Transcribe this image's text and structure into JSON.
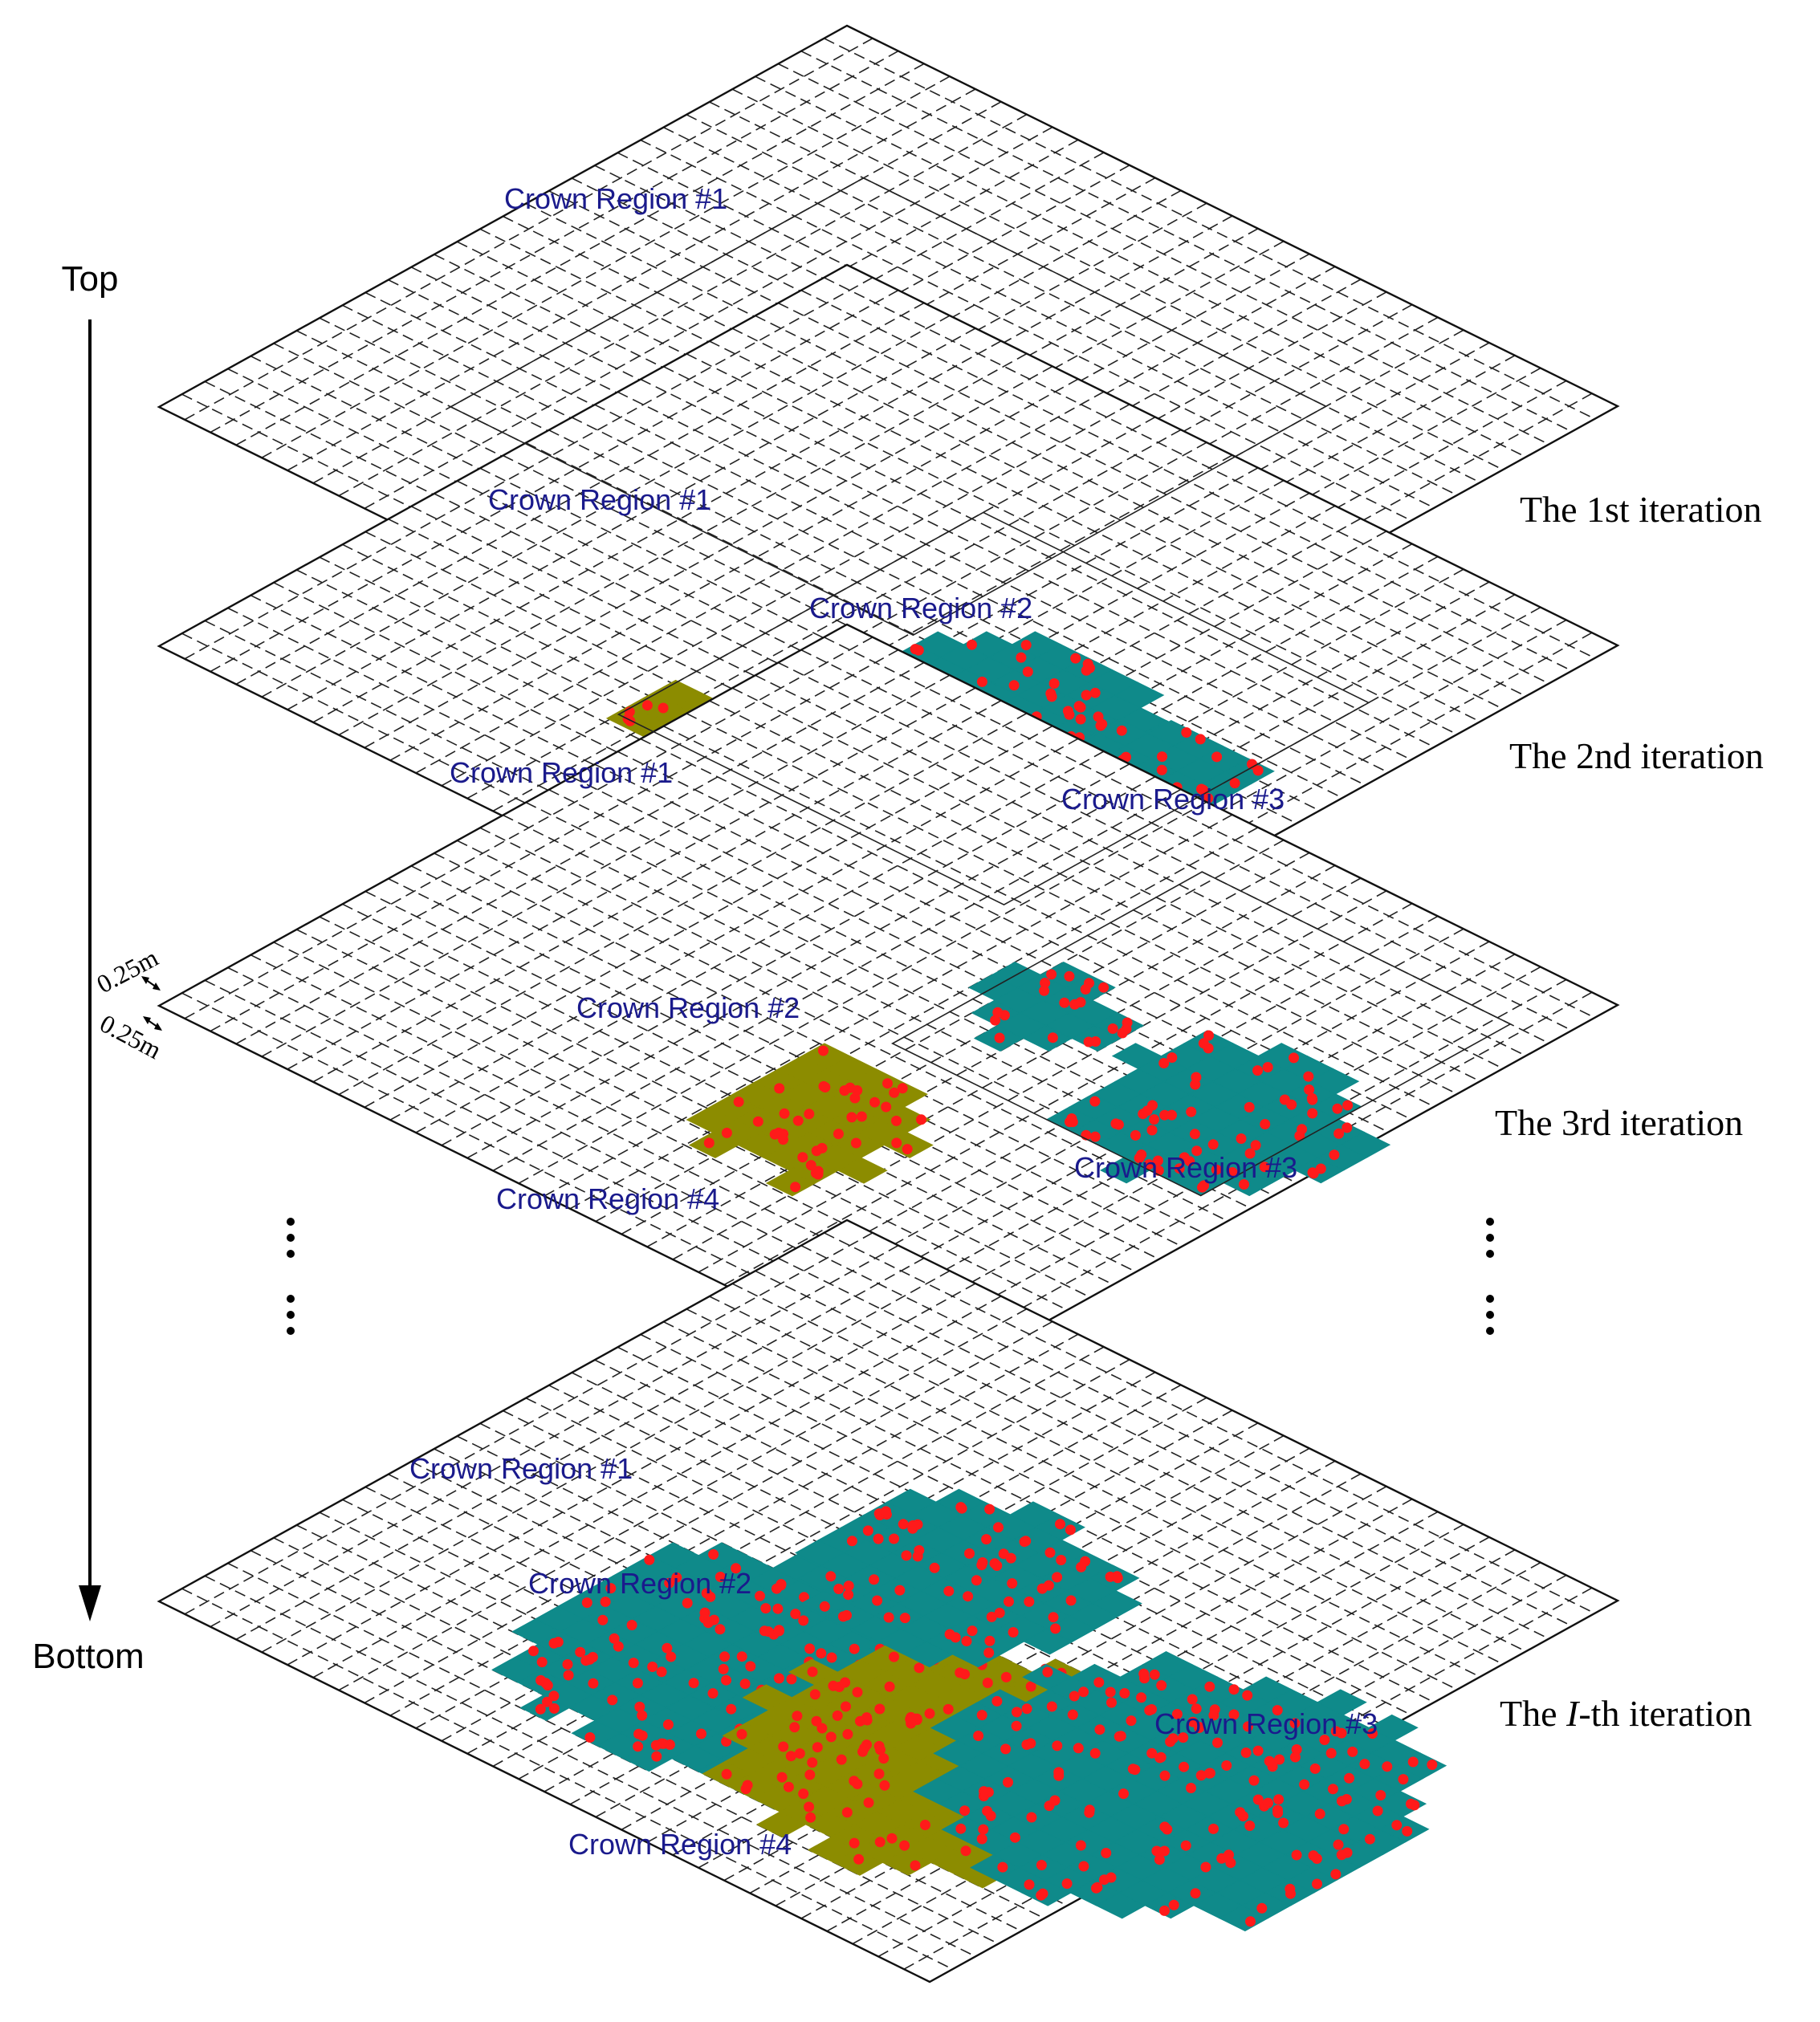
{
  "axis": {
    "top_label": "Top",
    "bottom_label": "Bottom"
  },
  "scale": {
    "cell_size_a": "0.25m",
    "cell_size_b": "0.25m"
  },
  "colors": {
    "grid": "#222222",
    "region_teal": "#0f8a8a",
    "region_olive": "#8c8c00",
    "point": "#ff1a1a",
    "region_label": "#1a1a8c"
  },
  "ellipsis": {
    "left": "⋮",
    "right": "⋮"
  },
  "iterations": [
    {
      "label": "The 1st iteration",
      "regions": [
        {
          "label": "Crown Region #1",
          "color": "teal"
        }
      ],
      "projected_regions": [
        {
          "label": "Crown Region #1",
          "color": "teal"
        }
      ]
    },
    {
      "label": "The 2nd iteration",
      "regions": [
        {
          "label": "Crown Region #1",
          "color": "teal"
        },
        {
          "label": "Crown Region #2",
          "color": "olive"
        },
        {
          "label": "Crown Region #3",
          "color": "teal"
        }
      ]
    },
    {
      "label": "The 3rd iteration",
      "regions": [
        {
          "label": "Crown Region #2",
          "color": "olive"
        },
        {
          "label": "Crown Region #3",
          "color": "teal"
        },
        {
          "label": "Crown Region #4",
          "color": "teal"
        }
      ]
    },
    {
      "label_prefix": "The ",
      "label_var": "I",
      "label_suffix": "-th iteration",
      "regions": [
        {
          "label": "Crown Region #1",
          "color": "teal"
        },
        {
          "label": "Crown Region #2",
          "color": "olive"
        },
        {
          "label": "Crown Region #3",
          "color": "teal"
        },
        {
          "label": "Crown Region #4",
          "color": "teal"
        }
      ]
    }
  ]
}
